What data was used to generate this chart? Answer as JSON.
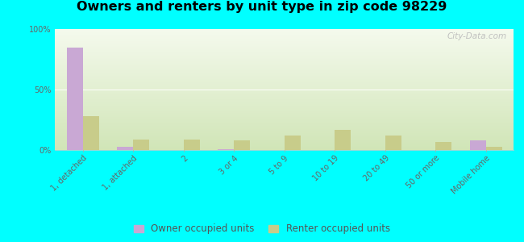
{
  "title": "Owners and renters by unit type in zip code 98229",
  "categories": [
    "1, detached",
    "1, attached",
    "2",
    "3 or 4",
    "5 to 9",
    "10 to 19",
    "20 to 49",
    "50 or more",
    "Mobile home"
  ],
  "owner_values": [
    85,
    3,
    0,
    0.5,
    0,
    0,
    0,
    0,
    8
  ],
  "renter_values": [
    28,
    9,
    9,
    8,
    12,
    17,
    12,
    7,
    3
  ],
  "owner_color": "#c9a8d4",
  "renter_color": "#c8cc8a",
  "bg_color_top_left": "#d0e8b0",
  "bg_color_top_right": "#e8f0d0",
  "bg_color_bottom": "#f5f8ee",
  "outer_bg": "#00ffff",
  "ylim": [
    0,
    100
  ],
  "yticks": [
    0,
    50,
    100
  ],
  "ytick_labels": [
    "0%",
    "50%",
    "100%"
  ],
  "bar_width": 0.32,
  "legend_owner": "Owner occupied units",
  "legend_renter": "Renter occupied units",
  "watermark": "City-Data.com",
  "title_fontsize": 11.5,
  "tick_fontsize": 7,
  "legend_fontsize": 8.5
}
